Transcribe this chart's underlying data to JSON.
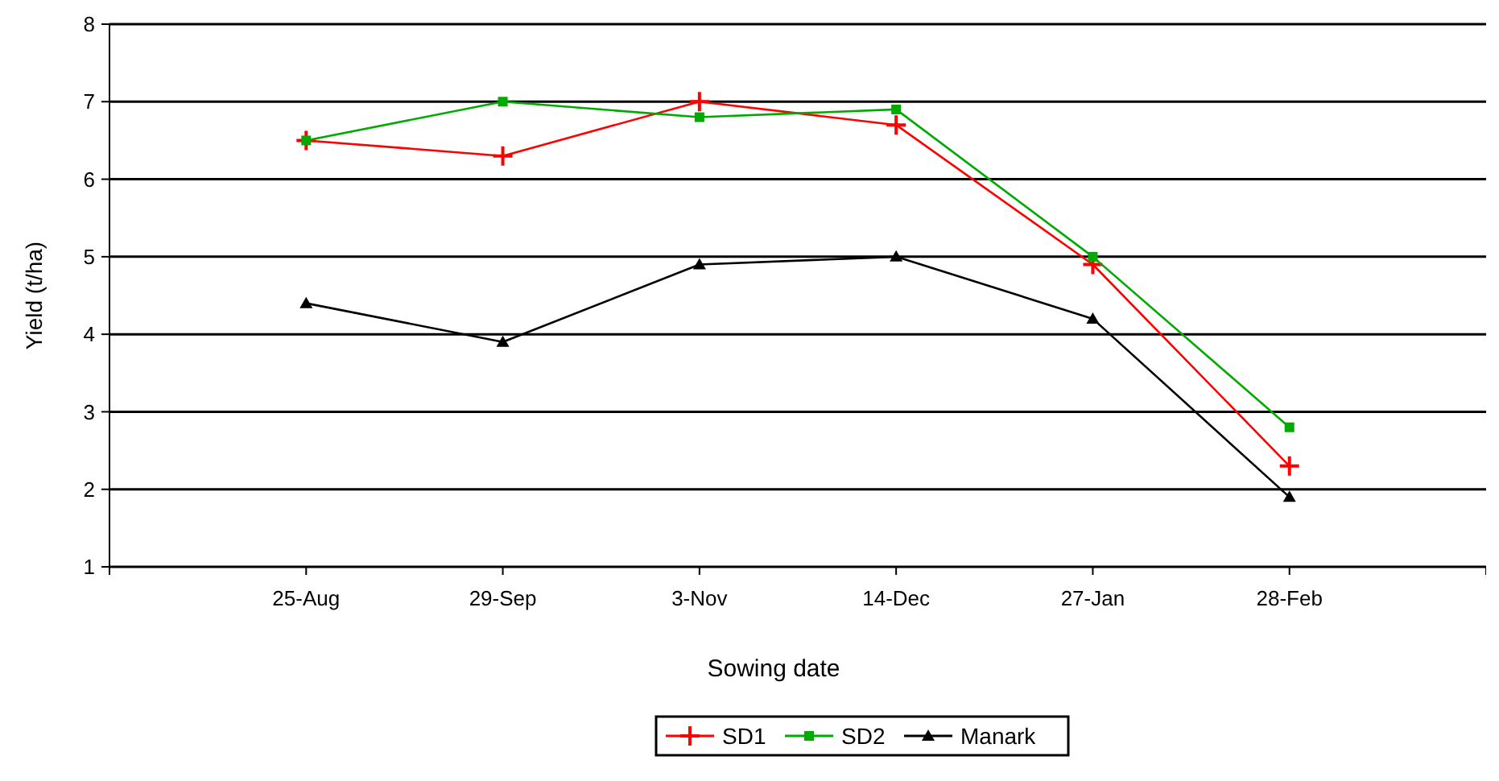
{
  "chart_data": {
    "type": "line",
    "xlabel": "Sowing date",
    "ylabel": "Yield (t/ha)",
    "categories": [
      "25-Aug",
      "29-Sep",
      "3-Nov",
      "14-Dec",
      "27-Jan",
      "28-Feb"
    ],
    "ylim": [
      1,
      8
    ],
    "yticks": [
      1,
      2,
      3,
      4,
      5,
      6,
      7,
      8
    ],
    "grid": "y",
    "legend": "bottom",
    "line_style": "solid",
    "series": [
      {
        "name": "SD1",
        "color": "#ff0000",
        "marker": "cross",
        "values": [
          6.5,
          6.3,
          7.0,
          6.7,
          4.9,
          2.3
        ]
      },
      {
        "name": "SD2",
        "color": "#00aa00",
        "marker": "square",
        "values": [
          6.5,
          7.0,
          6.8,
          6.9,
          5.0,
          2.8
        ]
      },
      {
        "name": "Manark",
        "color": "#000000",
        "marker": "triangle",
        "values": [
          4.4,
          3.9,
          4.9,
          5.0,
          4.2,
          1.9
        ]
      }
    ]
  }
}
